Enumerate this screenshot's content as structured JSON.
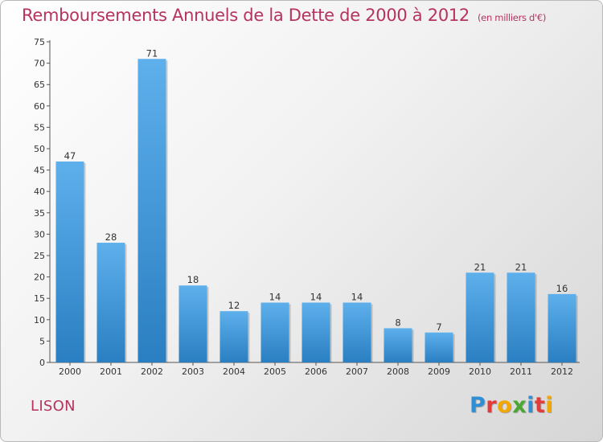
{
  "header": {
    "title": "Remboursements Annuels de la Dette de 2000 à 2012",
    "unit": "(en milliers d'€)"
  },
  "footer": {
    "commune": "LISON",
    "logo_text": "Proxiti"
  },
  "colors": {
    "title": "#b5335d",
    "bar_top": "#5eb0ec",
    "bar_bottom": "#2a7fc2",
    "logo": [
      "#2f8fd6",
      "#e23b3b",
      "#f2a800",
      "#4aa832",
      "#2f8fd6",
      "#e23b3b",
      "#f2a800"
    ]
  },
  "chart_data": {
    "type": "bar",
    "title": "Remboursements Annuels de la Dette de 2000 à 2012",
    "xlabel": "",
    "ylabel": "",
    "categories": [
      "2000",
      "2001",
      "2002",
      "2003",
      "2004",
      "2005",
      "2006",
      "2007",
      "2008",
      "2009",
      "2010",
      "2011",
      "2012"
    ],
    "values": [
      47,
      28,
      71,
      18,
      12,
      14,
      14,
      14,
      8,
      7,
      21,
      21,
      16
    ],
    "ylim": [
      0,
      75
    ],
    "yticks": [
      0,
      5,
      10,
      15,
      20,
      25,
      30,
      35,
      40,
      45,
      50,
      55,
      60,
      65,
      70,
      75
    ],
    "grid": false,
    "legend": "none"
  }
}
